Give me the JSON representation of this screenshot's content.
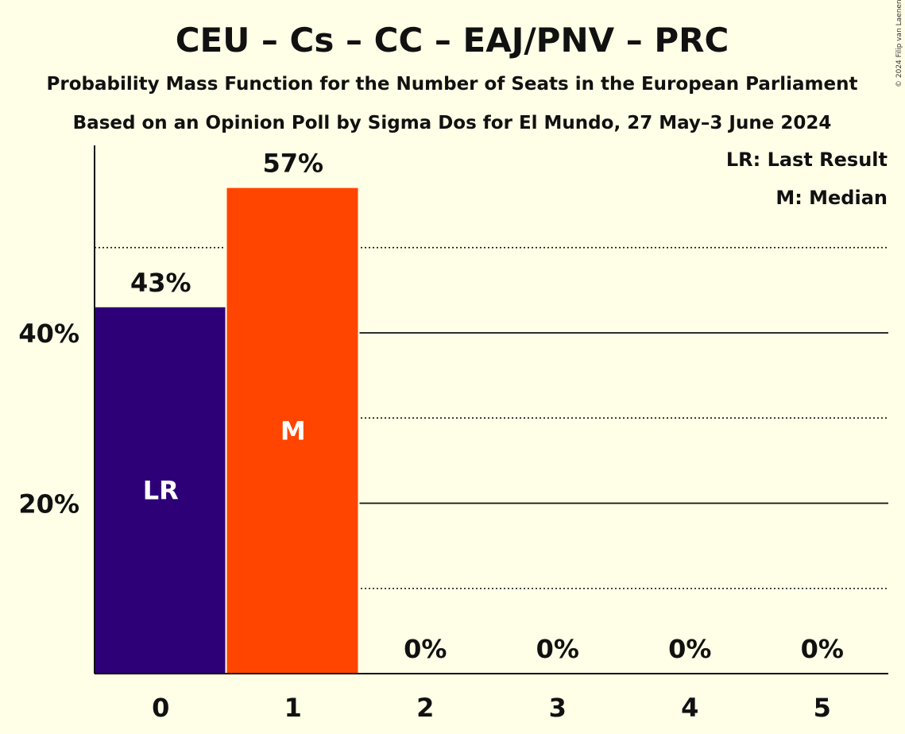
{
  "chart_data": {
    "type": "bar",
    "title": "CEU – Cs – CC – EAJ/PNV – PRC",
    "subtitle": "Probability Mass Function for the Number of Seats in the European Parliament",
    "subtitle2": "Based on an Opinion Poll by Sigma Dos for El Mundo, 27 May–3 June 2024",
    "copyright": "© 2024 Filip van Laenen",
    "legend": [
      {
        "key": "lr",
        "text": "LR: Last Result"
      },
      {
        "key": "m",
        "text": "M: Median"
      }
    ],
    "legend_position": "top-right",
    "categories": [
      "0",
      "1",
      "2",
      "3",
      "4",
      "5"
    ],
    "values": [
      43,
      57,
      0,
      0,
      0,
      0
    ],
    "value_labels": [
      "43%",
      "57%",
      "0%",
      "0%",
      "0%",
      "0%"
    ],
    "bar_markers": [
      "LR",
      "M",
      "",
      "",
      "",
      ""
    ],
    "bar_colors": [
      "#2E0078",
      "#FF4500",
      "#2E0078",
      "#2E0078",
      "#2E0078",
      "#2E0078"
    ],
    "ylim": [
      0,
      62
    ],
    "y_ticks": [
      {
        "value": 20,
        "label": "20%"
      },
      {
        "value": 40,
        "label": "40%"
      }
    ],
    "grid_solid": [
      20,
      40
    ],
    "grid_dotted": [
      10,
      30,
      50
    ],
    "xlabel": "",
    "ylabel": ""
  }
}
